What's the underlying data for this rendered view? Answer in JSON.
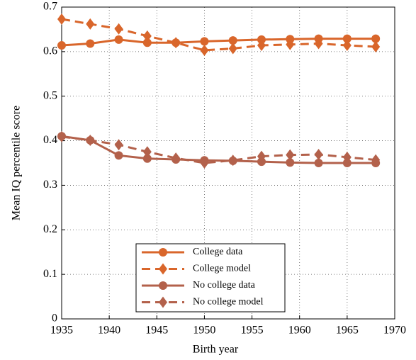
{
  "chart_data": {
    "type": "line",
    "xlabel": "Birth year",
    "ylabel": "Mean IQ percentile score",
    "x": [
      1935,
      1938,
      1941,
      1944,
      1947,
      1950,
      1953,
      1956,
      1959,
      1962,
      1965,
      1968
    ],
    "series": [
      {
        "name": "College data",
        "color": "#d9662b",
        "dash": false,
        "marker": "circle",
        "values": [
          0.614,
          0.618,
          0.627,
          0.62,
          0.62,
          0.623,
          0.625,
          0.627,
          0.628,
          0.629,
          0.629,
          0.629
        ]
      },
      {
        "name": "College model",
        "color": "#d9662b",
        "dash": true,
        "marker": "diamond",
        "values": [
          0.673,
          0.662,
          0.651,
          0.635,
          0.62,
          0.603,
          0.607,
          0.614,
          0.616,
          0.618,
          0.614,
          0.611
        ]
      },
      {
        "name": "No college data",
        "color": "#b3614b",
        "dash": false,
        "marker": "circle",
        "values": [
          0.41,
          0.401,
          0.367,
          0.36,
          0.358,
          0.356,
          0.355,
          0.353,
          0.351,
          0.35,
          0.35,
          0.35
        ]
      },
      {
        "name": "No college model",
        "color": "#b3614b",
        "dash": true,
        "marker": "diamond",
        "values": [
          0.409,
          0.401,
          0.391,
          0.375,
          0.361,
          0.35,
          0.356,
          0.365,
          0.368,
          0.369,
          0.363,
          0.357
        ]
      }
    ],
    "xlim": [
      1935,
      1970
    ],
    "xticks": [
      1935,
      1940,
      1945,
      1950,
      1955,
      1960,
      1965,
      1970
    ],
    "ylim": [
      0,
      0.7
    ],
    "yticks": [
      0,
      0.1,
      0.2,
      0.3,
      0.4,
      0.5,
      0.6,
      0.7
    ],
    "grid": true,
    "legend": "lower center"
  }
}
